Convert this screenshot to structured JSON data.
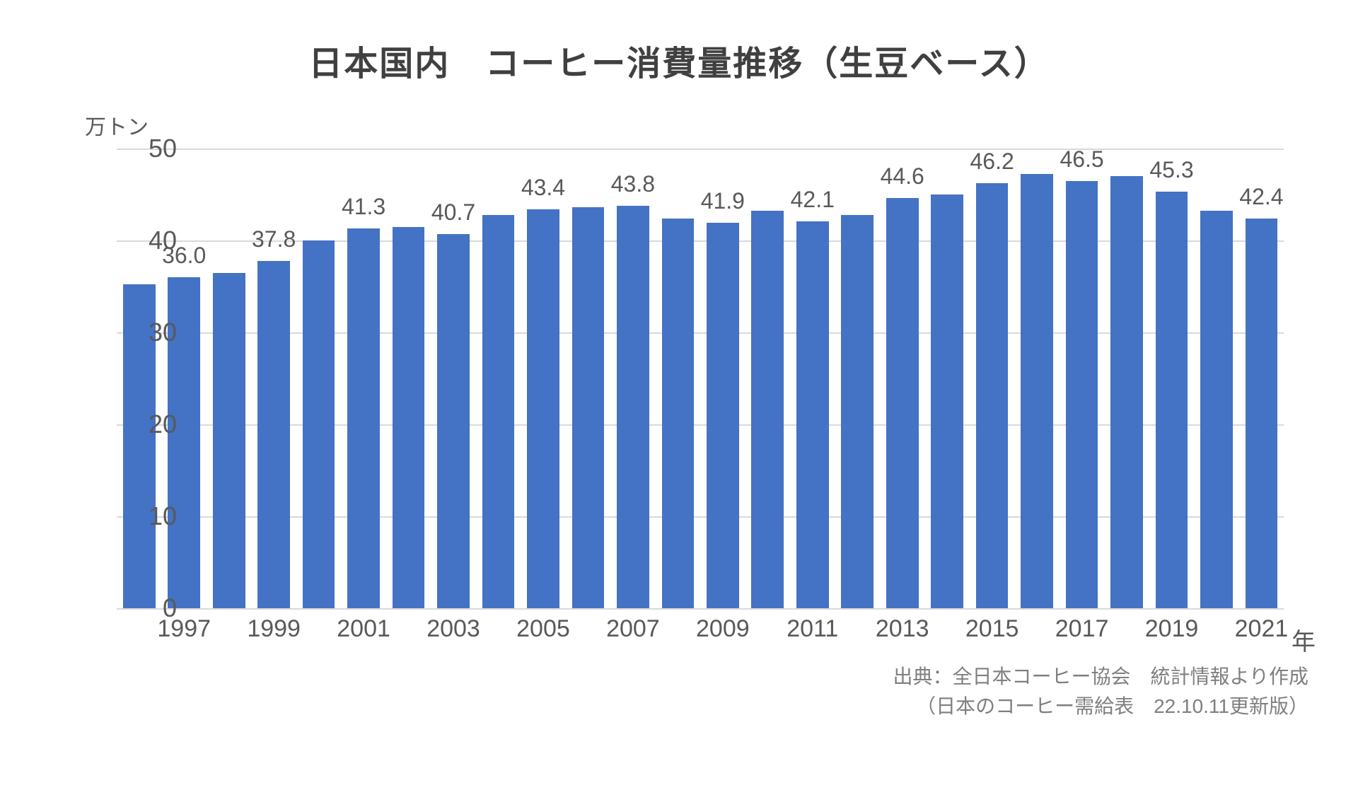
{
  "chart": {
    "type": "bar",
    "title": "日本国内　コーヒー消費量推移（生豆ベース）",
    "title_fontsize": 48,
    "title_color": "#404040",
    "y_unit": "万トン",
    "x_unit": "年",
    "unit_fontsize": 30,
    "background_color": "#ffffff",
    "grid_color": "#d9d9d9",
    "bar_color": "#4472c4",
    "bar_width": 0.72,
    "label_color": "#595959",
    "label_fontsize": 32,
    "tick_fontsize": 36,
    "xtick_fontsize": 34,
    "ylim": [
      0,
      50
    ],
    "ytick_step": 10,
    "yticks": [
      0,
      10,
      20,
      30,
      40,
      50
    ],
    "years": [
      1996,
      1997,
      1998,
      1999,
      2000,
      2001,
      2002,
      2003,
      2004,
      2005,
      2006,
      2007,
      2008,
      2009,
      2010,
      2011,
      2012,
      2013,
      2014,
      2015,
      2016,
      2017,
      2018,
      2019,
      2020,
      2021
    ],
    "values": [
      35.2,
      36.0,
      36.5,
      37.8,
      40.0,
      41.3,
      41.5,
      40.7,
      42.8,
      43.4,
      43.6,
      43.8,
      42.4,
      41.9,
      43.2,
      42.1,
      42.8,
      44.6,
      45.0,
      46.2,
      47.2,
      46.5,
      47.0,
      45.3,
      43.2,
      42.4
    ],
    "value_labels": [
      "",
      "36.0",
      "",
      "37.8",
      "",
      "41.3",
      "",
      "40.7",
      "",
      "43.4",
      "",
      "43.8",
      "",
      "41.9",
      "",
      "42.1",
      "",
      "44.6",
      "",
      "46.2",
      "",
      "46.5",
      "",
      "45.3",
      "",
      "42.4"
    ],
    "x_tick_labels": [
      "",
      "1997",
      "",
      "1999",
      "",
      "2001",
      "",
      "2003",
      "",
      "2005",
      "",
      "2007",
      "",
      "2009",
      "",
      "2011",
      "",
      "2013",
      "",
      "2015",
      "",
      "2017",
      "",
      "2019",
      "",
      "2021"
    ]
  },
  "source": {
    "line1": "出典：全日本コーヒー協会　統計情報より作成",
    "line2": "（日本のコーヒー需給表　22.10.11更新版）",
    "fontsize": 28,
    "color": "#7f7f7f"
  }
}
